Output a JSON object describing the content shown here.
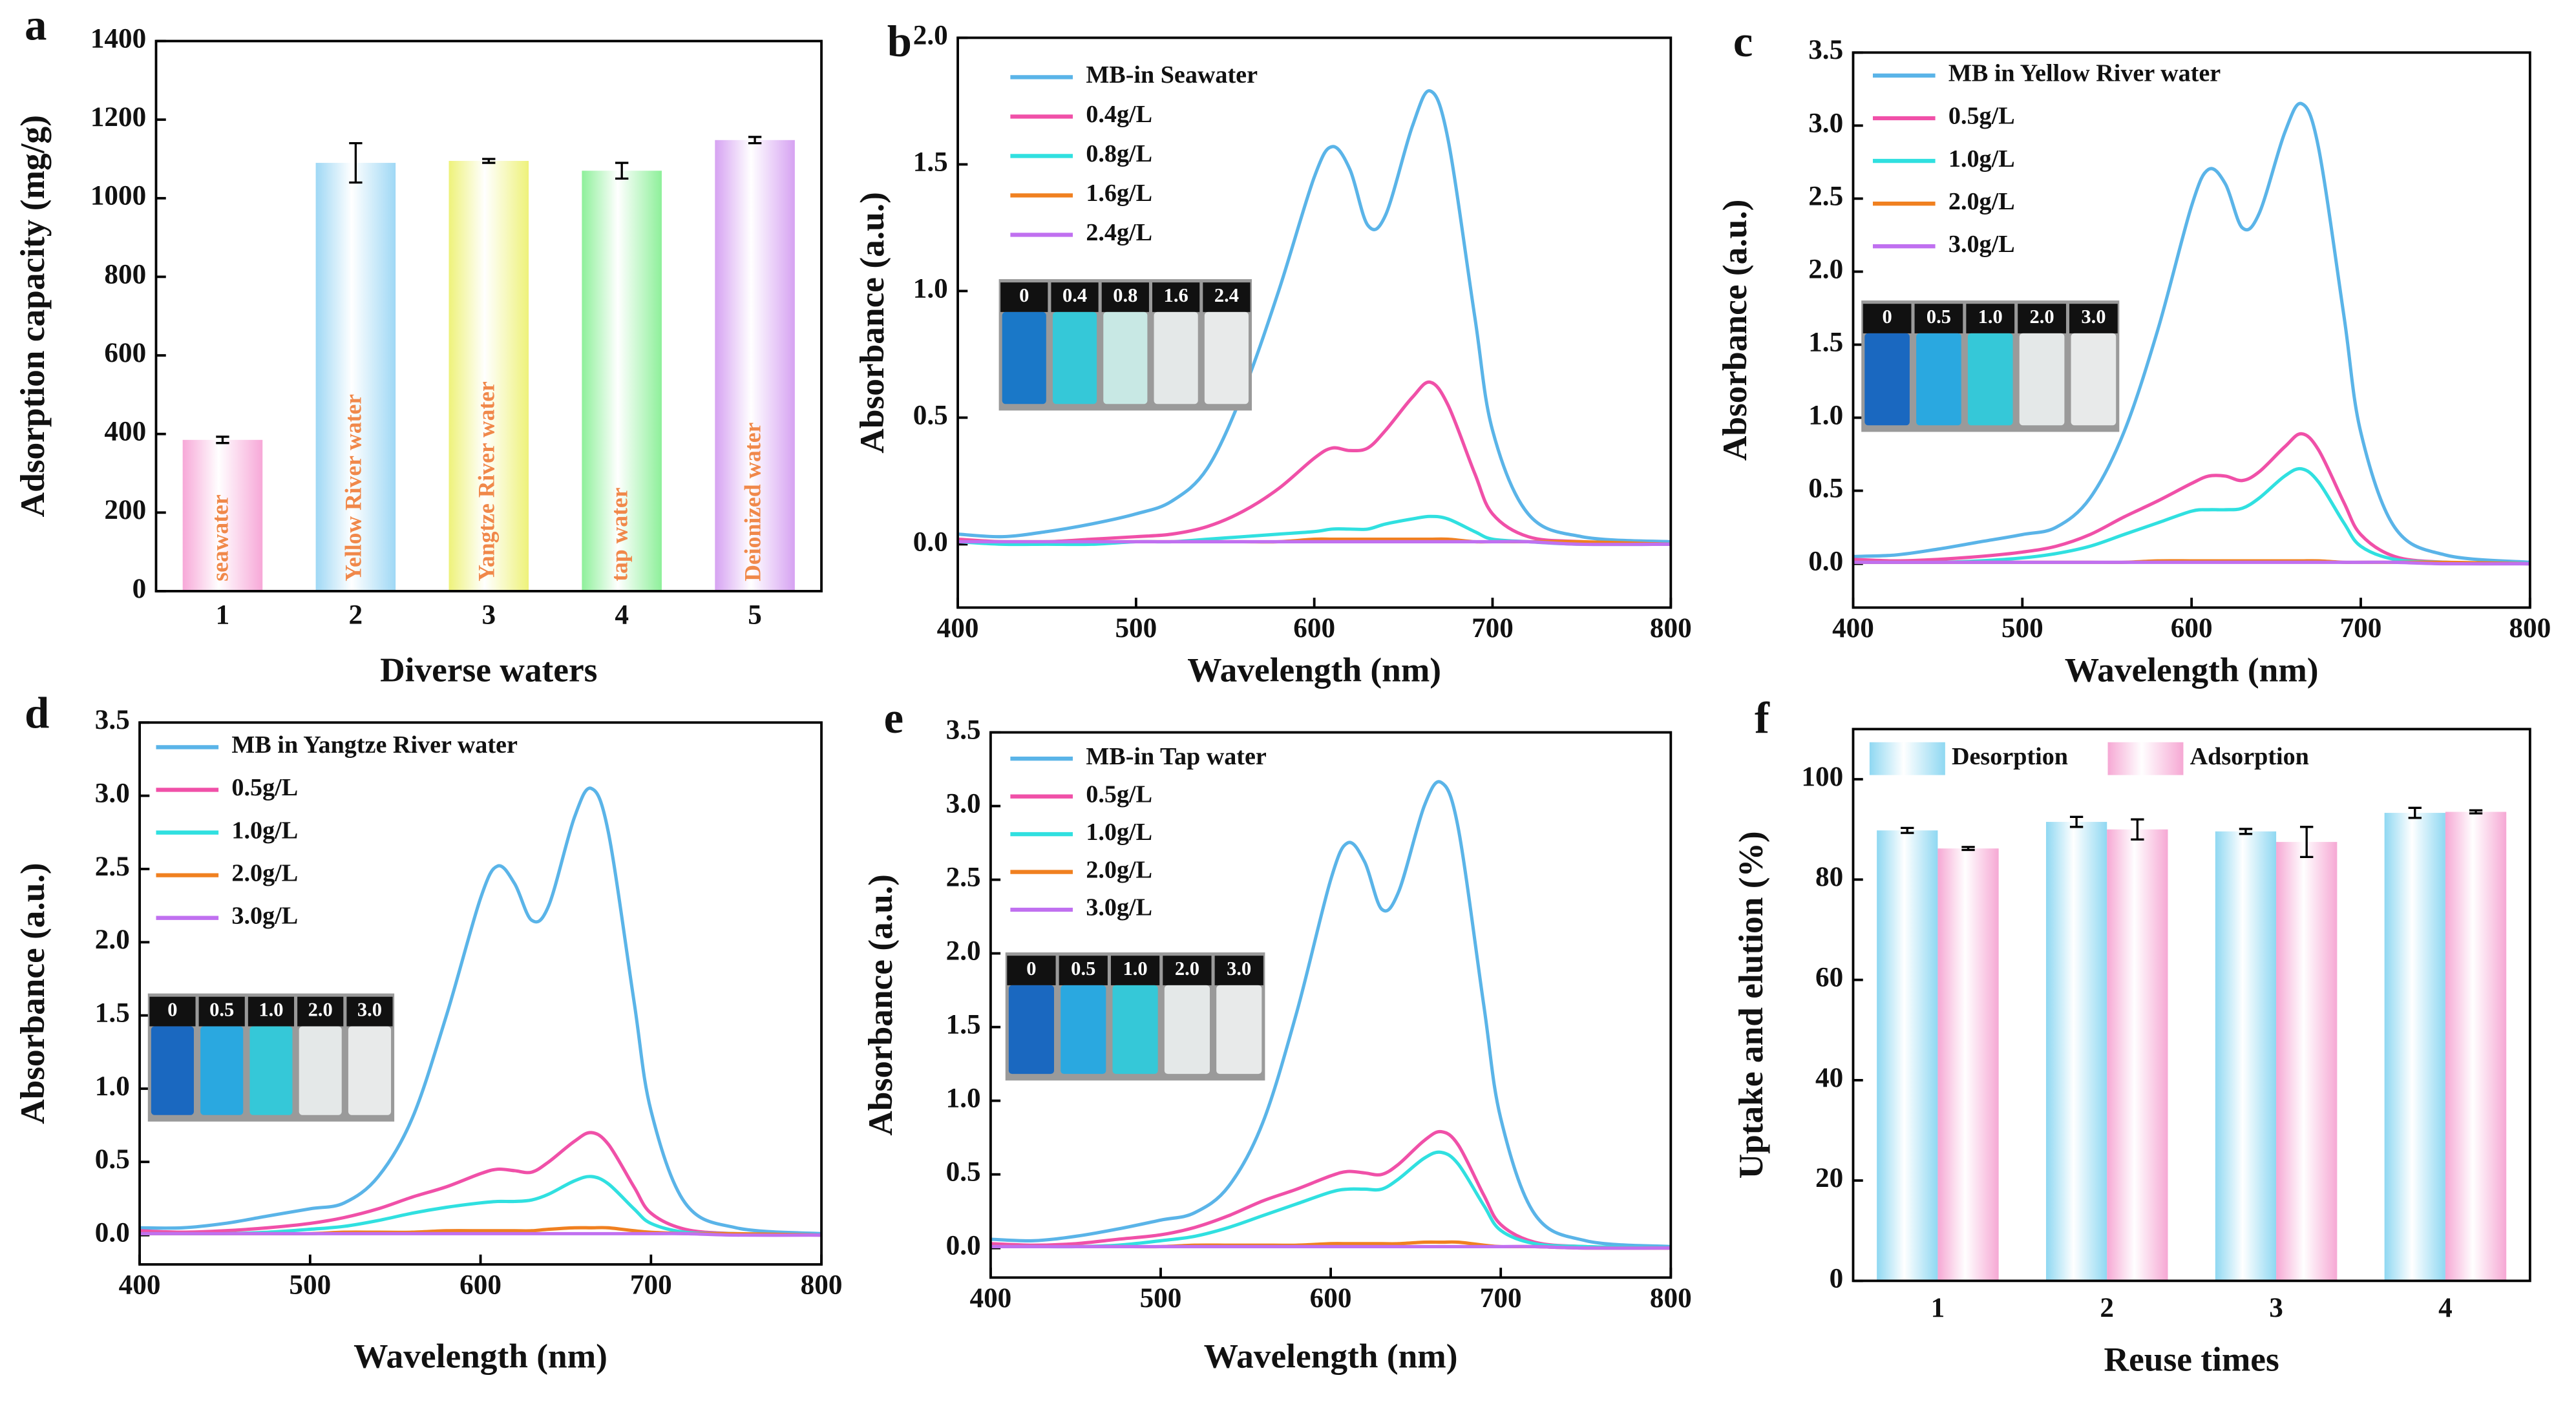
{
  "chart_data": [
    {
      "type": "bar",
      "panel": "a",
      "xlabel": "Diverse waters",
      "ylabel": "Adsorption capacity (mg/g)",
      "categories": [
        "1",
        "2",
        "3",
        "4",
        "5"
      ],
      "values": [
        385,
        1090,
        1095,
        1070,
        1148
      ],
      "errors": [
        8,
        50,
        5,
        20,
        8
      ],
      "colors": [
        "#f7a8d8",
        "#9fd8f5",
        "#eef27a",
        "#8ef09a",
        "#d6a2f2"
      ],
      "bar_labels": [
        "seawater",
        "Yellow River water",
        "Yangtze River water",
        "tap water",
        "Deionized water"
      ],
      "ylim": [
        0,
        1400
      ],
      "yticks": [
        0,
        200,
        400,
        600,
        800,
        1000,
        1200,
        1400
      ]
    },
    {
      "type": "line",
      "panel": "b",
      "xlabel": "Wavelength (nm)",
      "ylabel": "Absorbance (a.u.)",
      "x": [
        400,
        425,
        450,
        475,
        500,
        520,
        540,
        560,
        580,
        600,
        610,
        620,
        630,
        640,
        655,
        665,
        675,
        690,
        700,
        720,
        750,
        800
      ],
      "series": [
        {
          "name": "MB-in Seawater",
          "color": "#5ab4e8",
          "values": [
            0.04,
            0.03,
            0.05,
            0.08,
            0.12,
            0.17,
            0.3,
            0.6,
            1.0,
            1.45,
            1.57,
            1.48,
            1.26,
            1.3,
            1.65,
            1.79,
            1.6,
            0.9,
            0.45,
            0.12,
            0.03,
            0.01
          ]
        },
        {
          "name": "0.4g/L",
          "color": "#f050a8",
          "values": [
            0.02,
            0.01,
            0.01,
            0.02,
            0.03,
            0.04,
            0.07,
            0.13,
            0.22,
            0.34,
            0.38,
            0.37,
            0.38,
            0.45,
            0.58,
            0.64,
            0.55,
            0.28,
            0.12,
            0.03,
            0.01,
            0
          ]
        },
        {
          "name": "0.8g/L",
          "color": "#30e0e0",
          "values": [
            0.01,
            0,
            0,
            0,
            0.01,
            0.01,
            0.02,
            0.03,
            0.04,
            0.05,
            0.06,
            0.06,
            0.06,
            0.08,
            0.1,
            0.11,
            0.1,
            0.05,
            0.02,
            0.01,
            0,
            0
          ]
        },
        {
          "name": "1.6g/L",
          "color": "#f08020",
          "values": [
            0.01,
            0.01,
            0.01,
            0.01,
            0.01,
            0.01,
            0.01,
            0.01,
            0.01,
            0.02,
            0.02,
            0.02,
            0.02,
            0.02,
            0.02,
            0.02,
            0.02,
            0.01,
            0.01,
            0.01,
            0.01,
            0
          ]
        },
        {
          "name": "2.4g/L",
          "color": "#c070f0",
          "values": [
            0.01,
            0.01,
            0.01,
            0.01,
            0.01,
            0.01,
            0.01,
            0.01,
            0.01,
            0.01,
            0.01,
            0.01,
            0.01,
            0.01,
            0.01,
            0.01,
            0.01,
            0.01,
            0.01,
            0.01,
            0,
            0
          ]
        }
      ],
      "inset_labels": [
        "0",
        "0.4",
        "0.8",
        "1.6",
        "2.4"
      ],
      "inset_colors": [
        "#1a78c8",
        "#35c8d8",
        "#c8e8e4",
        "#e4e8e8",
        "#e8eaea"
      ],
      "xlim": [
        400,
        800
      ],
      "xticks": [
        400,
        500,
        600,
        700,
        800
      ],
      "ylim": [
        -0.25,
        2.0
      ],
      "yticks": [
        {
          "value": 0,
          "label": "0.0"
        },
        0.5,
        {
          "value": 1,
          "label": "1.0"
        },
        1.5,
        {
          "value": 2,
          "label": "2.0"
        }
      ]
    },
    {
      "type": "line",
      "panel": "c",
      "xlabel": "Wavelength (nm)",
      "ylabel": "Absorbance (a.u.)",
      "x": [
        400,
        425,
        450,
        475,
        500,
        520,
        540,
        560,
        580,
        600,
        610,
        620,
        630,
        640,
        655,
        665,
        675,
        690,
        700,
        720,
        750,
        800
      ],
      "series": [
        {
          "name": "MB in Yellow River water",
          "color": "#5ab4e8",
          "values": [
            0.05,
            0.06,
            0.1,
            0.15,
            0.2,
            0.25,
            0.45,
            0.9,
            1.6,
            2.45,
            2.7,
            2.6,
            2.3,
            2.4,
            2.95,
            3.15,
            2.85,
            1.7,
            0.9,
            0.25,
            0.06,
            0.01
          ]
        },
        {
          "name": "0.5g/L",
          "color": "#f050a8",
          "values": [
            0.03,
            0.02,
            0.03,
            0.05,
            0.08,
            0.12,
            0.2,
            0.32,
            0.43,
            0.55,
            0.6,
            0.6,
            0.57,
            0.63,
            0.8,
            0.89,
            0.78,
            0.42,
            0.2,
            0.05,
            0.01,
            0
          ]
        },
        {
          "name": "1.0g/L",
          "color": "#30e0e0",
          "values": [
            0.01,
            0.01,
            0.01,
            0.02,
            0.04,
            0.07,
            0.12,
            0.2,
            0.28,
            0.36,
            0.37,
            0.37,
            0.38,
            0.45,
            0.6,
            0.65,
            0.56,
            0.28,
            0.12,
            0.03,
            0.01,
            0
          ]
        },
        {
          "name": "2.0g/L",
          "color": "#f08020",
          "values": [
            0.01,
            0.01,
            0.01,
            0.01,
            0.01,
            0.01,
            0.01,
            0.01,
            0.02,
            0.02,
            0.02,
            0.02,
            0.02,
            0.02,
            0.02,
            0.02,
            0.02,
            0.01,
            0.01,
            0.01,
            0.01,
            0
          ]
        },
        {
          "name": "3.0g/L",
          "color": "#c070f0",
          "values": [
            0.01,
            0.01,
            0.01,
            0.01,
            0.01,
            0.01,
            0.01,
            0.01,
            0.01,
            0.01,
            0.01,
            0.01,
            0.01,
            0.01,
            0.01,
            0.01,
            0.01,
            0.01,
            0.01,
            0.01,
            0,
            0
          ]
        }
      ],
      "inset_labels": [
        "0",
        "0.5",
        "1.0",
        "2.0",
        "3.0"
      ],
      "inset_colors": [
        "#1a68c0",
        "#2aa8e0",
        "#35c8d8",
        "#e4e8e8",
        "#e8eaea"
      ],
      "xlim": [
        400,
        800
      ],
      "xticks": [
        400,
        500,
        600,
        700,
        800
      ],
      "ylim": [
        -0.3,
        3.5
      ],
      "yticks": [
        {
          "value": 0,
          "label": "0.0"
        },
        0.5,
        {
          "value": 1,
          "label": "1.0"
        },
        1.5,
        {
          "value": 2,
          "label": "2.0"
        },
        2.5,
        {
          "value": 3,
          "label": "3.0"
        },
        3.5
      ]
    },
    {
      "type": "line",
      "panel": "d",
      "xlabel": "Wavelength (nm)",
      "ylabel": "Absorbance (a.u.)",
      "x": [
        400,
        425,
        450,
        475,
        500,
        520,
        540,
        560,
        580,
        600,
        610,
        620,
        630,
        640,
        655,
        665,
        675,
        690,
        700,
        720,
        750,
        800
      ],
      "series": [
        {
          "name": "MB in Yangtze River water",
          "color": "#5ab4e8",
          "values": [
            0.05,
            0.05,
            0.08,
            0.13,
            0.18,
            0.22,
            0.4,
            0.8,
            1.5,
            2.3,
            2.52,
            2.4,
            2.15,
            2.25,
            2.85,
            3.05,
            2.75,
            1.6,
            0.85,
            0.22,
            0.05,
            0.01
          ]
        },
        {
          "name": "0.5g/L",
          "color": "#f050a8",
          "values": [
            0.03,
            0.02,
            0.03,
            0.05,
            0.08,
            0.12,
            0.18,
            0.26,
            0.33,
            0.42,
            0.45,
            0.44,
            0.43,
            0.5,
            0.64,
            0.7,
            0.62,
            0.33,
            0.15,
            0.04,
            0.01,
            0
          ]
        },
        {
          "name": "1.0g/L",
          "color": "#30e0e0",
          "values": [
            0.01,
            0.01,
            0.01,
            0.02,
            0.04,
            0.06,
            0.1,
            0.15,
            0.19,
            0.22,
            0.23,
            0.23,
            0.24,
            0.28,
            0.37,
            0.4,
            0.35,
            0.18,
            0.08,
            0.02,
            0.01,
            0
          ]
        },
        {
          "name": "2.0g/L",
          "color": "#f08020",
          "values": [
            0.01,
            0.01,
            0.01,
            0.01,
            0.01,
            0.02,
            0.02,
            0.02,
            0.03,
            0.03,
            0.03,
            0.03,
            0.03,
            0.04,
            0.05,
            0.05,
            0.05,
            0.03,
            0.02,
            0.01,
            0.01,
            0
          ]
        },
        {
          "name": "3.0g/L",
          "color": "#c070f0",
          "values": [
            0.01,
            0.01,
            0.01,
            0.01,
            0.01,
            0.01,
            0.01,
            0.01,
            0.01,
            0.01,
            0.01,
            0.01,
            0.01,
            0.01,
            0.01,
            0.01,
            0.01,
            0.01,
            0.01,
            0.01,
            0,
            0
          ]
        }
      ],
      "inset_labels": [
        "0",
        "0.5",
        "1.0",
        "2.0",
        "3.0"
      ],
      "inset_colors": [
        "#1a68c0",
        "#2aa8e0",
        "#35c8d8",
        "#e4e8e8",
        "#e8eaea"
      ],
      "xlim": [
        400,
        800
      ],
      "xticks": [
        400,
        500,
        600,
        700,
        800
      ],
      "ylim": [
        -0.2,
        3.5
      ],
      "yticks": [
        {
          "value": 0,
          "label": "0.0"
        },
        0.5,
        {
          "value": 1,
          "label": "1.0"
        },
        1.5,
        {
          "value": 2,
          "label": "2.0"
        },
        2.5,
        {
          "value": 3,
          "label": "3.0"
        },
        3.5
      ]
    },
    {
      "type": "line",
      "panel": "e",
      "xlabel": "Wavelength (nm)",
      "ylabel": "Absorbance (a.u.)",
      "x": [
        400,
        425,
        450,
        475,
        500,
        520,
        540,
        560,
        580,
        600,
        610,
        620,
        630,
        640,
        655,
        665,
        675,
        690,
        700,
        720,
        750,
        800
      ],
      "series": [
        {
          "name": "MB-in Tap water",
          "color": "#5ab4e8",
          "values": [
            0.06,
            0.05,
            0.08,
            0.13,
            0.19,
            0.24,
            0.42,
            0.85,
            1.6,
            2.5,
            2.75,
            2.62,
            2.3,
            2.42,
            3.0,
            3.16,
            2.85,
            1.65,
            0.88,
            0.23,
            0.05,
            0.01
          ]
        },
        {
          "name": "0.5g/L",
          "color": "#f050a8",
          "values": [
            0.03,
            0.02,
            0.03,
            0.06,
            0.09,
            0.14,
            0.22,
            0.32,
            0.4,
            0.49,
            0.52,
            0.51,
            0.5,
            0.57,
            0.73,
            0.79,
            0.7,
            0.36,
            0.16,
            0.04,
            0.01,
            0
          ]
        },
        {
          "name": "1.0g/L",
          "color": "#30e0e0",
          "values": [
            0.01,
            0.01,
            0.01,
            0.02,
            0.05,
            0.08,
            0.14,
            0.22,
            0.3,
            0.38,
            0.4,
            0.4,
            0.4,
            0.47,
            0.61,
            0.65,
            0.57,
            0.29,
            0.12,
            0.03,
            0.01,
            0
          ]
        },
        {
          "name": "2.0g/L",
          "color": "#f08020",
          "values": [
            0.01,
            0.01,
            0.01,
            0.01,
            0.01,
            0.02,
            0.02,
            0.02,
            0.02,
            0.03,
            0.03,
            0.03,
            0.03,
            0.03,
            0.04,
            0.04,
            0.04,
            0.02,
            0.01,
            0.01,
            0,
            0
          ]
        },
        {
          "name": "3.0g/L",
          "color": "#c070f0",
          "values": [
            0.01,
            0.01,
            0.01,
            0.01,
            0.01,
            0.01,
            0.01,
            0.01,
            0.01,
            0.01,
            0.01,
            0.01,
            0.01,
            0.01,
            0.01,
            0.01,
            0.01,
            0.01,
            0.01,
            0.01,
            0,
            0
          ]
        }
      ],
      "inset_labels": [
        "0",
        "0.5",
        "1.0",
        "2.0",
        "3.0"
      ],
      "inset_colors": [
        "#1a68c0",
        "#2aa8e0",
        "#35c8d8",
        "#e4e8e8",
        "#e8eaea"
      ],
      "xlim": [
        400,
        800
      ],
      "xticks": [
        400,
        500,
        600,
        700,
        800
      ],
      "ylim": [
        -0.2,
        3.5
      ],
      "yticks": [
        {
          "value": 0,
          "label": "0.0"
        },
        0.5,
        {
          "value": 1,
          "label": "1.0"
        },
        1.5,
        {
          "value": 2,
          "label": "2.0"
        },
        2.5,
        {
          "value": 3,
          "label": "3.0"
        },
        3.5
      ]
    },
    {
      "type": "grouped_bar",
      "panel": "f",
      "xlabel": "Reuse times",
      "ylabel": "Uptake and elution (%)",
      "categories": [
        "1",
        "2",
        "3",
        "4"
      ],
      "series": [
        {
          "name": "Desorption",
          "color": "#8fd8f2",
          "values": [
            89.8,
            91.5,
            89.6,
            93.3
          ],
          "errors": [
            0.5,
            1,
            0.5,
            1
          ]
        },
        {
          "name": "Adsorption",
          "color": "#f6a8d4",
          "values": [
            86.2,
            90,
            87.5,
            93.5
          ],
          "errors": [
            0.3,
            2,
            3,
            0.3
          ]
        }
      ],
      "ylim": [
        0,
        110
      ],
      "yticks": [
        0,
        20,
        40,
        60,
        80,
        100
      ]
    }
  ]
}
